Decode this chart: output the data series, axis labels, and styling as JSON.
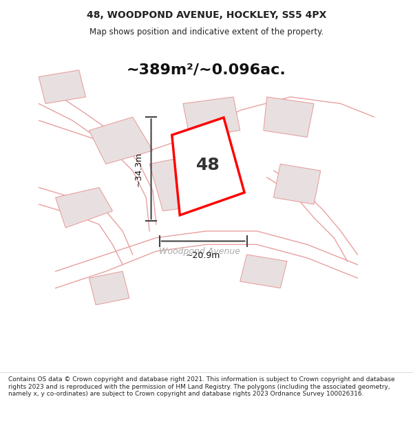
{
  "title": "48, WOODPOND AVENUE, HOCKLEY, SS5 4PX",
  "subtitle": "Map shows position and indicative extent of the property.",
  "area_text": "~389m²/~0.096ac.",
  "plot_number": "48",
  "dim_height": "~34.3m",
  "dim_width": "~20.9m",
  "road_label": "Woodpond Avenue",
  "footer": "Contains OS data © Crown copyright and database right 2021. This information is subject to Crown copyright and database rights 2023 and is reproduced with the permission of HM Land Registry. The polygons (including the associated geometry, namely x, y co-ordinates) are subject to Crown copyright and database rights 2023 Ordnance Survey 100026316.",
  "bg_color": "#f5f0f0",
  "title_color": "#222222",
  "plot_fill": "#ffffff",
  "plot_edge": "#ff0000",
  "neighbor_fill": "#e8e0e0",
  "neighbor_edge": "#e8a0a0",
  "road_lines_color": "#e8a0a0",
  "dim_line_color": "#444444",
  "road_label_color": "#aaaaaa",
  "footer_color": "#222222",
  "footer_bg": "#ffffff"
}
